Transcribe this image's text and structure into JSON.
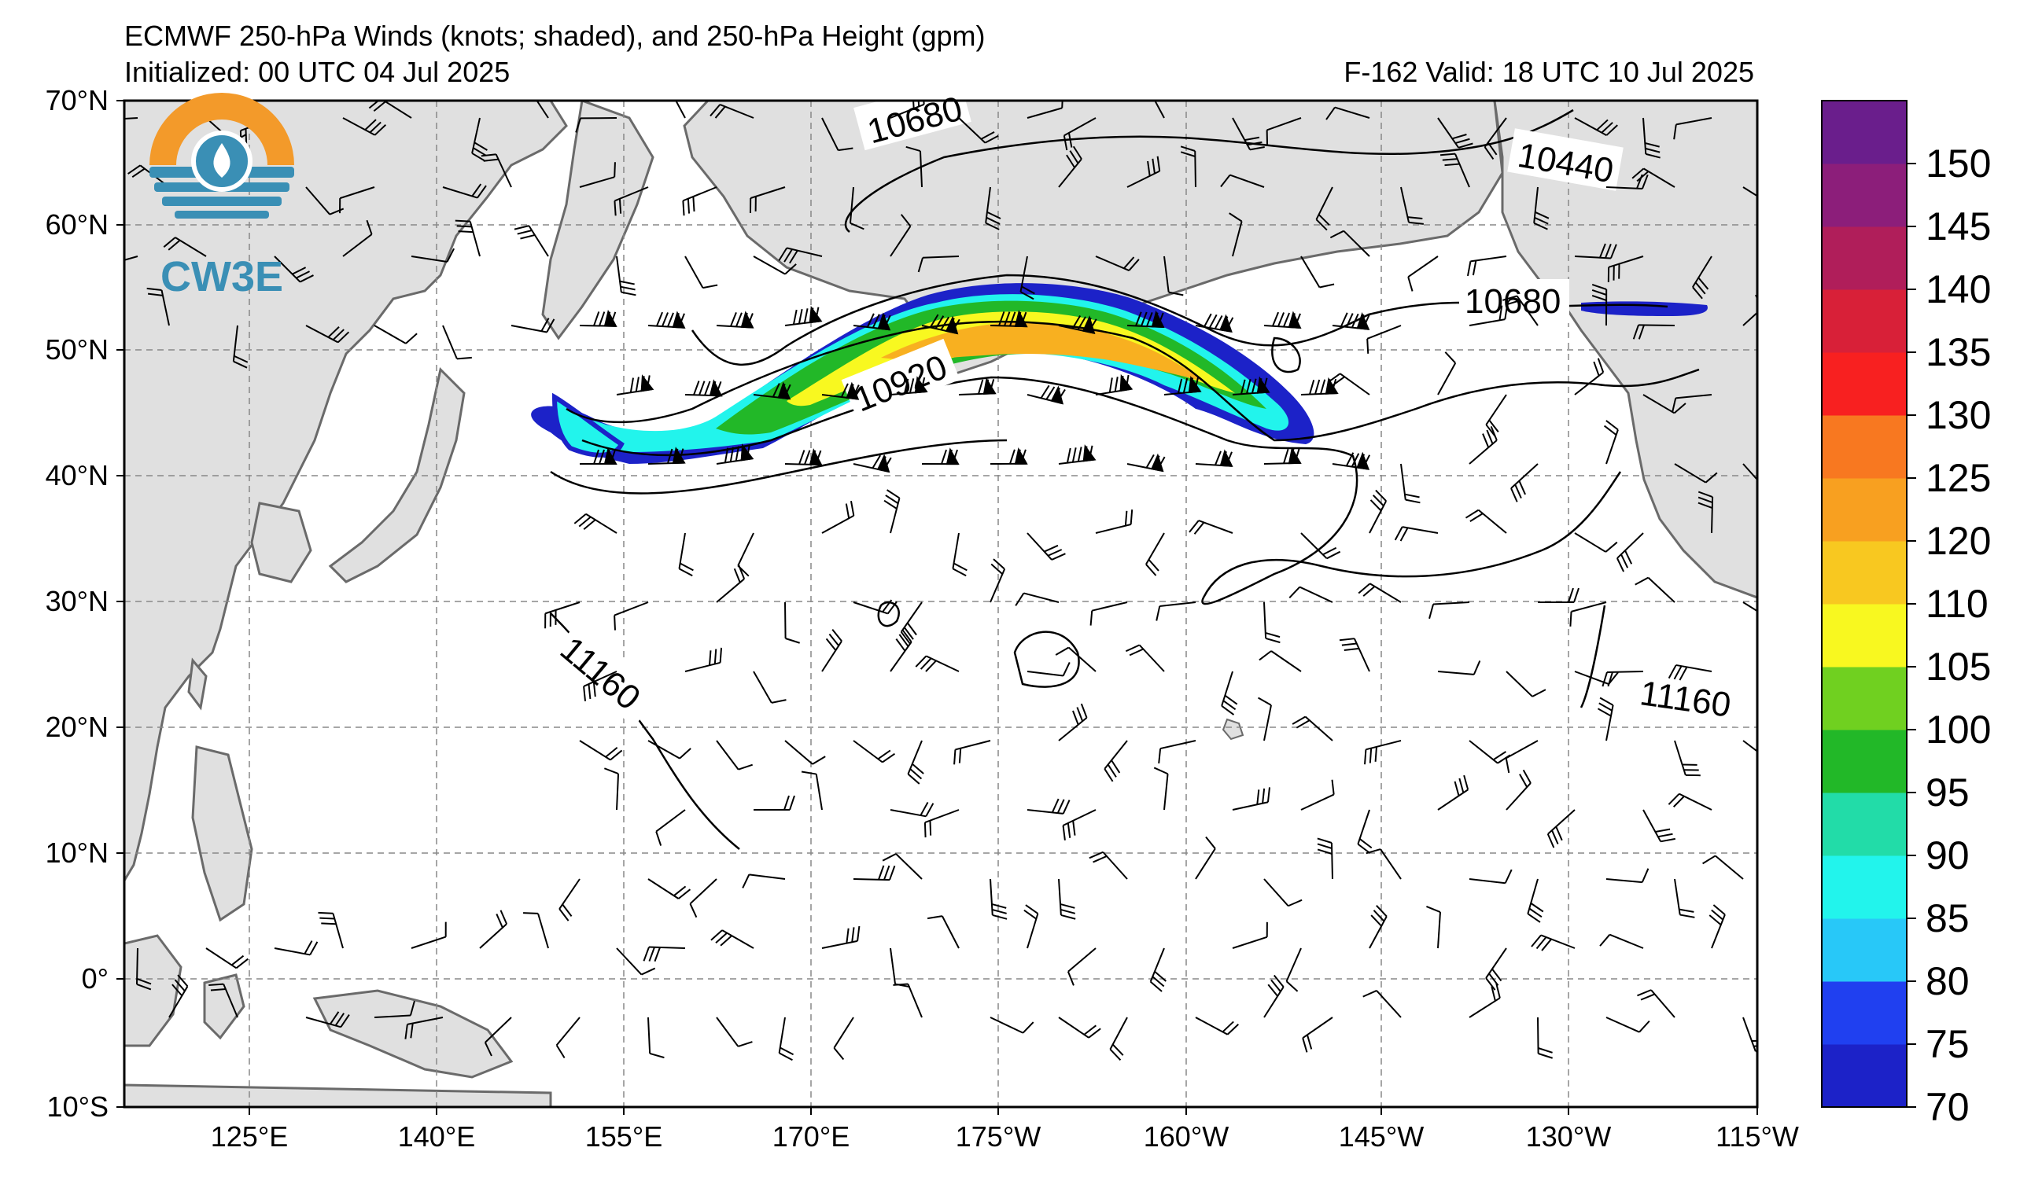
{
  "header": {
    "title": "ECMWF 250-hPa Winds (knots; shaded), and 250-hPa Height (gpm)",
    "initialized": "Initialized: 00 UTC 04 Jul 2025",
    "valid": "F-162  Valid: 18 UTC 10 Jul 2025"
  },
  "logo": {
    "text": "CW3E",
    "colors": {
      "sun": "#f39a2a",
      "water": "#3a8fb5"
    }
  },
  "axes": {
    "lat_labels": [
      "70°N",
      "60°N",
      "50°N",
      "40°N",
      "30°N",
      "20°N",
      "10°N",
      "0°",
      "10°S"
    ],
    "lon_labels": [
      "125°E",
      "140°E",
      "155°E",
      "170°E",
      "175°W",
      "160°W",
      "145°W",
      "130°W",
      "115°W"
    ]
  },
  "contours": {
    "labels": [
      "10680",
      "10440",
      "10680",
      "10920",
      "11160",
      "11160"
    ]
  },
  "colorbar": {
    "ticks": [
      "70",
      "75",
      "80",
      "85",
      "90",
      "95",
      "100",
      "105",
      "110",
      "120",
      "125",
      "130",
      "135",
      "140",
      "145",
      "150"
    ],
    "colors": [
      "#1c22c8",
      "#2040f0",
      "#28c8f8",
      "#22f4ec",
      "#22dca8",
      "#22b828",
      "#70d020",
      "#f8f820",
      "#f8c820",
      "#f8a020",
      "#f87820",
      "#f82020",
      "#d82038",
      "#b01e5a",
      "#8c1e7a",
      "#6a1e8c"
    ]
  },
  "jet": {
    "colors": {
      "outer": "#1c22c8",
      "cyan": "#22f4ec",
      "green": "#22b828",
      "yellow": "#f8f820",
      "orange": "#f8b020"
    }
  },
  "land": {
    "fill": "#e0e0e0",
    "coast": "#6a6a6a"
  }
}
